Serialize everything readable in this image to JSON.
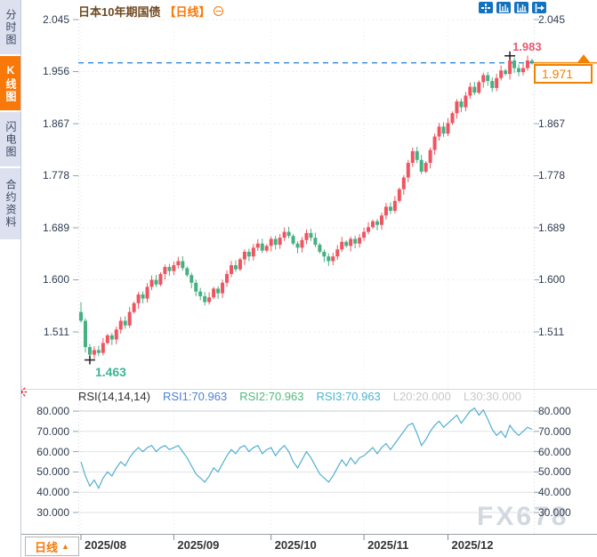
{
  "sidebar": {
    "tabs": [
      {
        "label": "分时图",
        "active": false
      },
      {
        "label": "K线图",
        "active": true
      },
      {
        "label": "闪电图",
        "active": false
      },
      {
        "label": "合约资料",
        "active": false
      }
    ]
  },
  "header": {
    "title": "日本10年期国债",
    "period_tag": "【日线】",
    "toolbar_icons": [
      "crosshair-icon",
      "zoom-y-axis-icon",
      "zoom-x-axis-icon",
      "pan-right-icon"
    ]
  },
  "main_chart": {
    "left_axis_labels": [
      "2.045",
      "1.956",
      "1.867",
      "1.778",
      "1.689",
      "1.600",
      "1.511"
    ],
    "right_axis_labels": [
      "2.045",
      "1.867",
      "1.778",
      "1.689",
      "1.600",
      "1.511"
    ],
    "annotations": {
      "high_text": "1.983",
      "low_text": "1.463",
      "last_price_text": "1.971"
    }
  },
  "rsi_panel": {
    "legend": [
      {
        "name": "rsi-params",
        "text": "RSI(14,14,14)",
        "color": "#333333"
      },
      {
        "name": "rsi1-value",
        "text": "RSI1:70.963",
        "color": "#4f82d6"
      },
      {
        "name": "rsi2-value",
        "text": "RSI2:70.963",
        "color": "#51b97e"
      },
      {
        "name": "rsi3-value",
        "text": "RSI3:70.963",
        "color": "#4db3cf"
      },
      {
        "name": "l20-value",
        "text": "L20:20.000",
        "color": "#c8c8c8"
      },
      {
        "name": "l30-value",
        "text": "L30:30.000",
        "color": "#c8c8c8"
      }
    ],
    "left_axis_labels": [
      "80.000",
      "70.000",
      "60.000",
      "50.000",
      "40.000",
      "30.000"
    ],
    "right_axis_labels": [
      "80.000",
      "70.000",
      "60.000",
      "50.000",
      "40.000",
      "30.000"
    ]
  },
  "bottom_bar": {
    "period_button_label": "日线",
    "period_button_arrow": "▲",
    "x_labels": [
      "2025/08",
      "2025/09",
      "2025/10",
      "2025/11",
      "2025/12"
    ]
  },
  "watermark": "FX678",
  "colors": {
    "up": "#ee5560",
    "down": "#45b183",
    "rsi_line": "#52aed2",
    "dashed_line": "#1f7fd4",
    "accent_orange": "#f8790a",
    "price_label": "#f08200",
    "high_label": "#e85a72",
    "low_label": "#3cb695",
    "toolbar_blue": "#1272bd",
    "title_brown": "#6e4a21",
    "axis_text": "#2f3b4f",
    "watermark": "#d2d8e0"
  },
  "chart_data": {
    "type": "candlestick",
    "title": "日本10年期国债 日线",
    "x_labels": [
      "2025/08",
      "2025/09",
      "2025/10",
      "2025/11",
      "2025/12"
    ],
    "month_start_indices": [
      0,
      21,
      43,
      64,
      83
    ],
    "y_ticks": [
      2.045,
      1.956,
      1.867,
      1.778,
      1.689,
      1.6,
      1.511
    ],
    "ylim": [
      1.41,
      2.05
    ],
    "first_open": 1.545,
    "closes": [
      1.53,
      1.485,
      1.472,
      1.48,
      1.475,
      1.492,
      1.505,
      1.498,
      1.515,
      1.53,
      1.522,
      1.545,
      1.56,
      1.575,
      1.568,
      1.588,
      1.6,
      1.592,
      1.61,
      1.622,
      1.615,
      1.625,
      1.632,
      1.62,
      1.608,
      1.595,
      1.58,
      1.572,
      1.562,
      1.57,
      1.585,
      1.577,
      1.595,
      1.61,
      1.625,
      1.618,
      1.635,
      1.648,
      1.64,
      1.655,
      1.662,
      1.65,
      1.658,
      1.67,
      1.66,
      1.672,
      1.682,
      1.675,
      1.662,
      1.655,
      1.668,
      1.68,
      1.672,
      1.66,
      1.648,
      1.64,
      1.632,
      1.64,
      1.652,
      1.665,
      1.658,
      1.67,
      1.662,
      1.672,
      1.682,
      1.69,
      1.7,
      1.694,
      1.71,
      1.725,
      1.718,
      1.735,
      1.755,
      1.775,
      1.8,
      1.82,
      1.805,
      1.785,
      1.8,
      1.822,
      1.845,
      1.862,
      1.85,
      1.868,
      1.885,
      1.905,
      1.895,
      1.915,
      1.93,
      1.92,
      1.938,
      1.95,
      1.94,
      1.928,
      1.945,
      1.958,
      1.952,
      1.975,
      1.962,
      1.955,
      1.962,
      1.975,
      1.971
    ],
    "wick_overrides": {
      "0": {
        "high": 1.562
      },
      "2": {
        "low": 1.463
      },
      "97": {
        "high": 1.983
      }
    },
    "high_marker": {
      "index": 97,
      "price": 1.983
    },
    "low_marker": {
      "index": 2,
      "price": 1.463
    },
    "last_price": 1.971,
    "rsi": {
      "type": "line",
      "params": [
        14,
        14,
        14
      ],
      "y_ticks": [
        80,
        70,
        60,
        50,
        40,
        30
      ],
      "values": [
        55,
        48,
        43,
        46,
        42,
        47,
        50,
        48,
        52,
        55,
        53,
        57,
        60,
        62,
        60,
        62,
        63,
        60,
        62,
        63,
        61,
        62,
        63,
        60,
        57,
        53,
        49,
        47,
        45,
        48,
        52,
        50,
        54,
        58,
        61,
        59,
        62,
        63,
        60,
        62,
        63,
        59,
        61,
        62,
        58,
        61,
        63,
        60,
        55,
        52,
        56,
        60,
        57,
        53,
        49,
        47,
        45,
        48,
        52,
        56,
        53,
        57,
        54,
        57,
        58,
        60,
        62,
        59,
        62,
        64,
        61,
        64,
        67,
        70,
        73,
        74,
        69,
        63,
        66,
        70,
        73,
        75,
        72,
        74,
        76,
        78,
        74,
        77,
        80,
        81.5,
        78,
        80.5,
        76,
        71,
        68,
        70,
        67,
        73,
        70,
        68,
        70,
        72,
        70.963
      ]
    }
  }
}
